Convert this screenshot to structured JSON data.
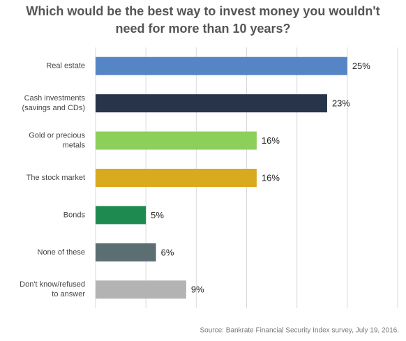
{
  "chart_data": {
    "type": "bar",
    "title": [
      "Which would be the best way to invest money you wouldn't",
      "need for more than 10 years?"
    ],
    "categories": [
      [
        "Real estate"
      ],
      [
        "Cash investments",
        "(savings and CDs)"
      ],
      [
        "Gold or precious",
        "metals"
      ],
      [
        "The stock market"
      ],
      [
        "Bonds"
      ],
      [
        "None of these"
      ],
      [
        "Don't know/refused",
        "to answer"
      ]
    ],
    "values": [
      25,
      23,
      16,
      16,
      5,
      6,
      9
    ],
    "value_labels": [
      "25%",
      "23%",
      "16%",
      "16%",
      "5%",
      "6%",
      "9%"
    ],
    "colors": [
      "#5585c5",
      "#283449",
      "#8ccf5a",
      "#d9a91e",
      "#1e8a4f",
      "#5b6e72",
      "#b3b3b3"
    ],
    "xlim": [
      0,
      30
    ],
    "xticks": [
      0,
      5,
      10,
      15,
      20,
      25,
      30
    ],
    "grid": true,
    "source": "Source: Bankrate Financial Security Index survey, July 19, 2016."
  }
}
